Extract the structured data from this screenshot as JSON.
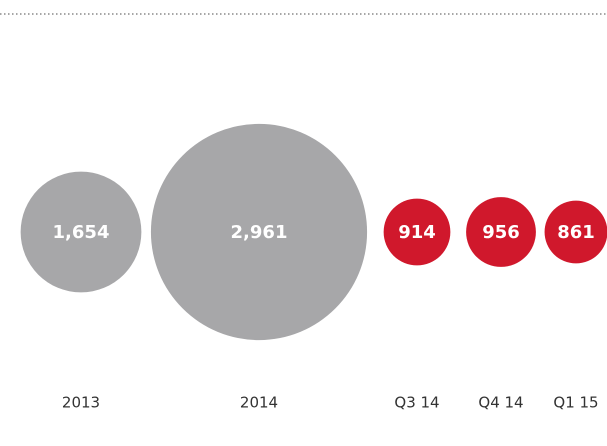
{
  "chart_data": {
    "type": "bubble",
    "categories": [
      "2013",
      "2014",
      "Q3 14",
      "Q4 14",
      "Q1 15"
    ],
    "values": [
      1654,
      2961,
      914,
      956,
      861
    ],
    "value_labels": [
      "1,654",
      "2,961",
      "914",
      "956",
      "861"
    ],
    "colors": [
      "#a7a7a9",
      "#a7a7a9",
      "#d0182c",
      "#d0182c",
      "#d0182c"
    ]
  }
}
